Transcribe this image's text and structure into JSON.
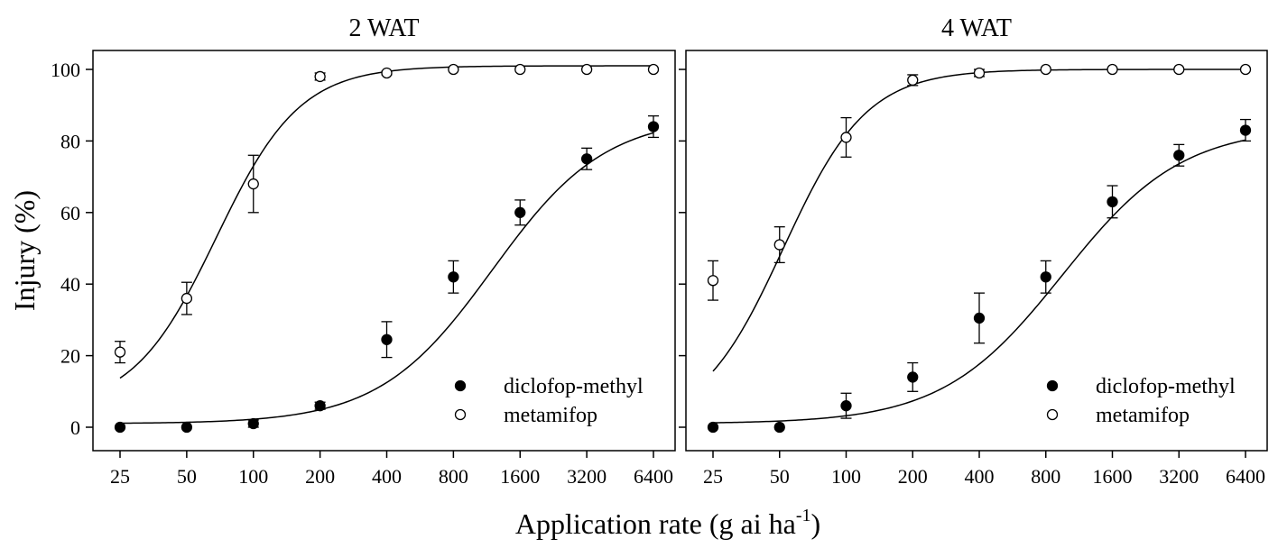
{
  "figure": {
    "ylabel": "Injury (%)",
    "xlabel_main": "Application rate (g ai ha",
    "xlabel_sup": "-1",
    "xlabel_close": ")"
  },
  "chart_data": [
    {
      "type": "scatter",
      "title": "2 WAT",
      "xscale": "log2",
      "x_ticks": [
        25,
        50,
        100,
        200,
        400,
        800,
        1600,
        3200,
        6400
      ],
      "ylim": [
        0,
        100
      ],
      "y_ticks": [
        0,
        20,
        40,
        60,
        80,
        100
      ],
      "legend_position": "bottom-right",
      "series": [
        {
          "name": "diclofop-methyl",
          "marker": "filled-circle",
          "x": [
            25,
            50,
            100,
            200,
            400,
            800,
            1600,
            3200,
            6400
          ],
          "y": [
            0,
            0,
            1,
            6,
            24.5,
            42,
            60,
            75,
            84
          ],
          "error": [
            0,
            0,
            1,
            1,
            5,
            4.5,
            3.5,
            3,
            3
          ],
          "fit": {
            "model": "log-logistic",
            "upper": 87,
            "lower": 1,
            "ed50": 1200,
            "slope": 1.7
          }
        },
        {
          "name": "metamifop",
          "marker": "open-circle",
          "x": [
            25,
            50,
            100,
            200,
            400,
            800,
            1600,
            3200,
            6400
          ],
          "y": [
            21,
            36,
            68,
            98,
            99,
            100,
            100,
            100,
            100
          ],
          "error": [
            3,
            4.5,
            8,
            1,
            0.5,
            0,
            0,
            0,
            0
          ],
          "fit": {
            "model": "log-logistic",
            "upper": 101,
            "lower": 5,
            "ed50": 68,
            "slope": 2.3
          }
        }
      ]
    },
    {
      "type": "scatter",
      "title": "4 WAT",
      "xscale": "log2",
      "x_ticks": [
        25,
        50,
        100,
        200,
        400,
        800,
        1600,
        3200,
        6400
      ],
      "ylim": [
        0,
        100
      ],
      "y_ticks": [
        0,
        20,
        40,
        60,
        80,
        100
      ],
      "legend_position": "bottom-right",
      "series": [
        {
          "name": "diclofop-methyl",
          "marker": "filled-circle",
          "x": [
            25,
            50,
            100,
            200,
            400,
            800,
            1600,
            3200,
            6400
          ],
          "y": [
            0,
            0,
            6,
            14,
            30.5,
            42,
            63,
            76,
            83
          ],
          "error": [
            0,
            0,
            3.5,
            4,
            7,
            4.5,
            4.5,
            3,
            3
          ],
          "fit": {
            "model": "log-logistic",
            "upper": 84,
            "lower": 1,
            "ed50": 950,
            "slope": 1.6
          }
        },
        {
          "name": "metamifop",
          "marker": "open-circle",
          "x": [
            25,
            50,
            100,
            200,
            400,
            800,
            1600,
            3200,
            6400
          ],
          "y": [
            41,
            51,
            81,
            97,
            99,
            100,
            100,
            100,
            100
          ],
          "error": [
            5.5,
            5,
            5.5,
            1.5,
            1,
            0,
            0,
            0,
            0
          ],
          "fit": {
            "model": "log-logistic",
            "upper": 100,
            "lower": 0,
            "ed50": 52,
            "slope": 2.3
          }
        }
      ]
    }
  ]
}
